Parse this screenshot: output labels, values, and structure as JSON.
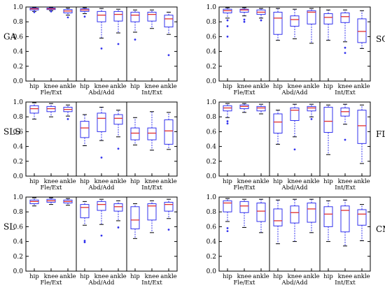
{
  "chart_data": [
    {
      "type": "box",
      "title": "GA",
      "side": "left",
      "categories": [
        "hip",
        "knee",
        "ankle",
        "hip",
        "knee",
        "ankle",
        "hip",
        "knee",
        "ankle"
      ],
      "groups": [
        "Fle/Ext",
        "Abd/Add",
        "Int/Ext"
      ],
      "ylim": [
        0,
        1.0
      ],
      "yticks": [
        "0.0",
        "0.2",
        "0.4",
        "0.6",
        "0.8",
        "1.0"
      ],
      "boxes": [
        {
          "whislo": 0.94,
          "q1": 0.96,
          "med": 0.975,
          "q3": 0.985,
          "whishi": 0.995,
          "fliers": [
            0.93
          ]
        },
        {
          "whislo": 0.95,
          "q1": 0.965,
          "med": 0.975,
          "q3": 0.985,
          "whishi": 0.995,
          "fliers": [
            0.94
          ]
        },
        {
          "whislo": 0.89,
          "q1": 0.92,
          "med": 0.945,
          "q3": 0.965,
          "whishi": 0.985,
          "fliers": [
            0.86
          ]
        },
        {
          "whislo": 0.91,
          "q1": 0.94,
          "med": 0.96,
          "q3": 0.975,
          "whishi": 0.99,
          "fliers": [
            0.87
          ]
        },
        {
          "whislo": 0.58,
          "q1": 0.8,
          "med": 0.89,
          "q3": 0.94,
          "whishi": 0.98,
          "fliers": [
            0.44
          ]
        },
        {
          "whislo": 0.65,
          "q1": 0.81,
          "med": 0.9,
          "q3": 0.94,
          "whishi": 0.97,
          "fliers": [
            0.5
          ]
        },
        {
          "whislo": 0.66,
          "q1": 0.8,
          "med": 0.89,
          "q3": 0.93,
          "whishi": 0.96,
          "fliers": [
            0.56
          ]
        },
        {
          "whislo": 0.71,
          "q1": 0.81,
          "med": 0.9,
          "q3": 0.93,
          "whishi": 0.96,
          "fliers": []
        },
        {
          "whislo": 0.63,
          "q1": 0.73,
          "med": 0.84,
          "q3": 0.89,
          "whishi": 0.93,
          "fliers": [
            0.35
          ]
        }
      ]
    },
    {
      "type": "box",
      "title": "SQ",
      "side": "right",
      "categories": [
        "hip",
        "knee",
        "ankle",
        "hip",
        "knee",
        "ankle",
        "hip",
        "knee",
        "ankle"
      ],
      "groups": [
        "Fle/Ext",
        "Abd/Add",
        "Int/Ext"
      ],
      "ylim": [
        0,
        1.0
      ],
      "yticks": [
        "0.0",
        "0.2",
        "0.4",
        "0.6",
        "0.8",
        "1.0"
      ],
      "boxes": [
        {
          "whislo": 0.85,
          "q1": 0.92,
          "med": 0.95,
          "q3": 0.97,
          "whishi": 0.99,
          "fliers": [
            0.82,
            0.74,
            0.6
          ]
        },
        {
          "whislo": 0.88,
          "q1": 0.93,
          "med": 0.96,
          "q3": 0.97,
          "whishi": 0.99,
          "fliers": [
            0.83,
            0.8
          ]
        },
        {
          "whislo": 0.85,
          "q1": 0.9,
          "med": 0.93,
          "q3": 0.96,
          "whishi": 0.98,
          "fliers": [
            0.82
          ]
        },
        {
          "whislo": 0.55,
          "q1": 0.63,
          "med": 0.85,
          "q3": 0.93,
          "whishi": 0.98,
          "fliers": []
        },
        {
          "whislo": 0.57,
          "q1": 0.74,
          "med": 0.83,
          "q3": 0.88,
          "whishi": 0.97,
          "fliers": []
        },
        {
          "whislo": 0.51,
          "q1": 0.77,
          "med": 0.93,
          "q3": 0.95,
          "whishi": 0.98,
          "fliers": []
        },
        {
          "whislo": 0.55,
          "q1": 0.77,
          "med": 0.86,
          "q3": 0.91,
          "whishi": 0.96,
          "fliers": []
        },
        {
          "whislo": 0.53,
          "q1": 0.79,
          "med": 0.87,
          "q3": 0.92,
          "whishi": 0.96,
          "fliers": [
            0.45,
            0.38
          ]
        },
        {
          "whislo": 0.44,
          "q1": 0.52,
          "med": 0.67,
          "q3": 0.84,
          "whishi": 0.95,
          "fliers": []
        }
      ]
    },
    {
      "type": "box",
      "title": "SLS",
      "side": "left",
      "categories": [
        "hip",
        "knee",
        "ankle",
        "hip",
        "knee",
        "ankle",
        "hip",
        "knee",
        "ankle"
      ],
      "groups": [
        "Fle/Ext",
        "Abd/Add",
        "Int/Ext"
      ],
      "ylim": [
        0,
        1.0
      ],
      "yticks": [
        "0.0",
        "0.2",
        "0.4",
        "0.6",
        "0.8",
        "1.0"
      ],
      "boxes": [
        {
          "whislo": 0.77,
          "q1": 0.85,
          "med": 0.91,
          "q3": 0.95,
          "whishi": 0.99,
          "fliers": []
        },
        {
          "whislo": 0.8,
          "q1": 0.87,
          "med": 0.91,
          "q3": 0.94,
          "whishi": 0.98,
          "fliers": []
        },
        {
          "whislo": 0.81,
          "q1": 0.87,
          "med": 0.9,
          "q3": 0.93,
          "whishi": 0.96,
          "fliers": [
            0.77
          ]
        },
        {
          "whislo": 0.41,
          "q1": 0.52,
          "med": 0.65,
          "q3": 0.74,
          "whishi": 0.83,
          "fliers": []
        },
        {
          "whislo": 0.48,
          "q1": 0.6,
          "med": 0.78,
          "q3": 0.85,
          "whishi": 0.93,
          "fliers": [
            0.25
          ]
        },
        {
          "whislo": 0.53,
          "q1": 0.7,
          "med": 0.78,
          "q3": 0.83,
          "whishi": 0.89,
          "fliers": [
            0.37
          ]
        },
        {
          "whislo": 0.42,
          "q1": 0.49,
          "med": 0.58,
          "q3": 0.65,
          "whishi": 0.79,
          "fliers": []
        },
        {
          "whislo": 0.35,
          "q1": 0.49,
          "med": 0.58,
          "q3": 0.65,
          "whishi": 0.87,
          "fliers": []
        },
        {
          "whislo": 0.36,
          "q1": 0.43,
          "med": 0.61,
          "q3": 0.76,
          "whishi": 0.86,
          "fliers": []
        }
      ]
    },
    {
      "type": "box",
      "title": "FL",
      "side": "right",
      "categories": [
        "hip",
        "knee",
        "ankle",
        "hip",
        "knee",
        "ankle",
        "hip",
        "knee",
        "ankle"
      ],
      "groups": [
        "Fle/Ext",
        "Abd/Add",
        "Int/Ext"
      ],
      "ylim": [
        0,
        1.0
      ],
      "yticks": [
        "0.0",
        "0.2",
        "0.4",
        "0.6",
        "0.8",
        "1.0"
      ],
      "boxes": [
        {
          "whislo": 0.79,
          "q1": 0.88,
          "med": 0.92,
          "q3": 0.95,
          "whishi": 0.98,
          "fliers": [
            0.74,
            0.71
          ]
        },
        {
          "whislo": 0.86,
          "q1": 0.91,
          "med": 0.94,
          "q3": 0.96,
          "whishi": 0.98,
          "fliers": []
        },
        {
          "whislo": 0.84,
          "q1": 0.88,
          "med": 0.92,
          "q3": 0.94,
          "whishi": 0.97,
          "fliers": []
        },
        {
          "whislo": 0.43,
          "q1": 0.58,
          "med": 0.73,
          "q3": 0.84,
          "whishi": 0.89,
          "fliers": []
        },
        {
          "whislo": 0.53,
          "q1": 0.75,
          "med": 0.89,
          "q3": 0.92,
          "whishi": 0.97,
          "fliers": [
            0.36
          ]
        },
        {
          "whislo": 0.8,
          "q1": 0.88,
          "med": 0.92,
          "q3": 0.94,
          "whishi": 0.97,
          "fliers": [
            0.77
          ]
        },
        {
          "whislo": 0.29,
          "q1": 0.59,
          "med": 0.74,
          "q3": 0.93,
          "whishi": 0.96,
          "fliers": []
        },
        {
          "whislo": 0.7,
          "q1": 0.81,
          "med": 0.87,
          "q3": 0.92,
          "whishi": 0.97,
          "fliers": [
            0.49
          ]
        },
        {
          "whislo": 0.17,
          "q1": 0.44,
          "med": 0.68,
          "q3": 0.89,
          "whishi": 0.96,
          "fliers": []
        }
      ]
    },
    {
      "type": "box",
      "title": "SL",
      "side": "left",
      "categories": [
        "hip",
        "knee",
        "ankle",
        "hip",
        "knee",
        "ankle",
        "hip",
        "knee",
        "ankle"
      ],
      "groups": [
        "Fle/Ext",
        "Abd/Add",
        "Int/Ext"
      ],
      "ylim": [
        0,
        1.0
      ],
      "yticks": [
        "0.0",
        "0.2",
        "0.4",
        "0.6",
        "0.8",
        "1.0"
      ],
      "boxes": [
        {
          "whislo": 0.88,
          "q1": 0.91,
          "med": 0.94,
          "q3": 0.96,
          "whishi": 0.99,
          "fliers": []
        },
        {
          "whislo": 0.9,
          "q1": 0.93,
          "med": 0.95,
          "q3": 0.97,
          "whishi": 0.99,
          "fliers": []
        },
        {
          "whislo": 0.89,
          "q1": 0.92,
          "med": 0.94,
          "q3": 0.96,
          "whishi": 0.98,
          "fliers": []
        },
        {
          "whislo": 0.62,
          "q1": 0.72,
          "med": 0.86,
          "q3": 0.9,
          "whishi": 0.94,
          "fliers": [
            0.41,
            0.39
          ]
        },
        {
          "whislo": 0.63,
          "q1": 0.82,
          "med": 0.9,
          "q3": 0.94,
          "whishi": 0.97,
          "fliers": [
            0.48
          ]
        },
        {
          "whislo": 0.68,
          "q1": 0.81,
          "med": 0.87,
          "q3": 0.91,
          "whishi": 0.95,
          "fliers": [
            0.59
          ]
        },
        {
          "whislo": 0.44,
          "q1": 0.57,
          "med": 0.69,
          "q3": 0.87,
          "whishi": 0.91,
          "fliers": []
        },
        {
          "whislo": 0.52,
          "q1": 0.69,
          "med": 0.88,
          "q3": 0.91,
          "whishi": 0.95,
          "fliers": []
        },
        {
          "whislo": 0.71,
          "q1": 0.81,
          "med": 0.9,
          "q3": 0.93,
          "whishi": 0.97,
          "fliers": [
            0.56
          ]
        }
      ]
    },
    {
      "type": "box",
      "title": "CMJ",
      "side": "right",
      "categories": [
        "hip",
        "knee",
        "ankle",
        "hip",
        "knee",
        "ankle",
        "hip",
        "knee",
        "ankle"
      ],
      "groups": [
        "Fle/Ext",
        "Abd/Add",
        "Int/Ext"
      ],
      "ylim": [
        0,
        1.0
      ],
      "yticks": [
        "0.0",
        "0.2",
        "0.4",
        "0.6",
        "0.8",
        "1.0"
      ],
      "boxes": [
        {
          "whislo": 0.67,
          "q1": 0.8,
          "med": 0.92,
          "q3": 0.95,
          "whishi": 0.98,
          "fliers": [
            0.58,
            0.54
          ]
        },
        {
          "whislo": 0.59,
          "q1": 0.79,
          "med": 0.88,
          "q3": 0.94,
          "whishi": 0.97,
          "fliers": []
        },
        {
          "whislo": 0.52,
          "q1": 0.67,
          "med": 0.81,
          "q3": 0.92,
          "whishi": 0.97,
          "fliers": []
        },
        {
          "whislo": 0.37,
          "q1": 0.61,
          "med": 0.68,
          "q3": 0.84,
          "whishi": 0.96,
          "fliers": []
        },
        {
          "whislo": 0.4,
          "q1": 0.65,
          "med": 0.79,
          "q3": 0.88,
          "whishi": 0.97,
          "fliers": []
        },
        {
          "whislo": 0.52,
          "q1": 0.66,
          "med": 0.84,
          "q3": 0.92,
          "whishi": 0.97,
          "fliers": []
        },
        {
          "whislo": 0.4,
          "q1": 0.6,
          "med": 0.77,
          "q3": 0.87,
          "whishi": 0.95,
          "fliers": []
        },
        {
          "whislo": 0.34,
          "q1": 0.53,
          "med": 0.82,
          "q3": 0.88,
          "whishi": 0.96,
          "fliers": []
        },
        {
          "whislo": 0.41,
          "q1": 0.62,
          "med": 0.77,
          "q3": 0.83,
          "whishi": 0.9,
          "fliers": []
        }
      ]
    }
  ],
  "colors": {
    "box": "#3333ee",
    "median": "#e03030",
    "flier": "#3333ee",
    "axis": "#000000",
    "text": "#000000"
  }
}
